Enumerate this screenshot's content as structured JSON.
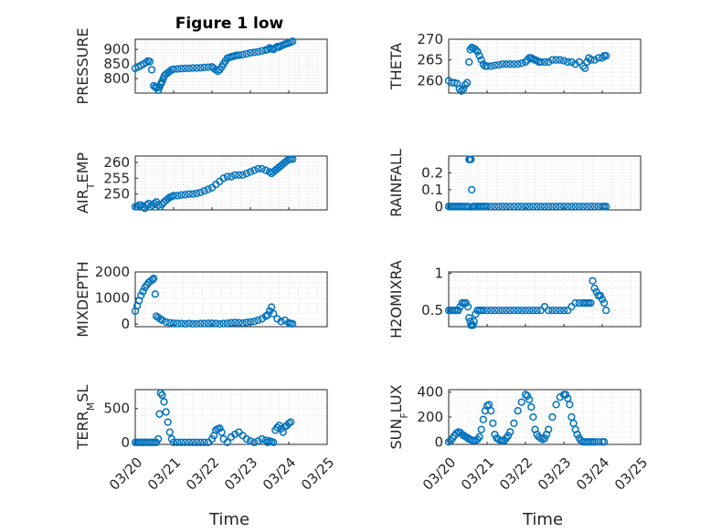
{
  "title": "Figure 1 low",
  "xlabel": "Time",
  "marker_color": "#0072BD",
  "x_ticks": [
    "03/20",
    "03/21",
    "03/22",
    "03/23",
    "03/24",
    "03/25"
  ],
  "chart_data": [
    {
      "type": "scatter",
      "ylabel": "PRESSURE",
      "ylim": [
        750,
        935
      ],
      "yticks": [
        800,
        850,
        900
      ],
      "xlim": [
        0,
        5
      ],
      "grid": "on",
      "x": [
        0.0,
        0.08,
        0.15,
        0.22,
        0.28,
        0.33,
        0.38,
        0.43,
        0.48,
        0.52,
        0.56,
        0.6,
        0.63,
        0.66,
        0.68,
        0.7,
        0.73,
        0.76,
        0.8,
        0.85,
        0.9,
        0.95,
        1.0,
        1.1,
        1.2,
        1.3,
        1.4,
        1.5,
        1.6,
        1.7,
        1.8,
        1.9,
        2.0,
        2.05,
        2.1,
        2.15,
        2.2,
        2.25,
        2.3,
        2.35,
        2.4,
        2.45,
        2.5,
        2.55,
        2.6,
        2.65,
        2.7,
        2.8,
        2.9,
        3.0,
        3.1,
        3.2,
        3.3,
        3.4,
        3.45,
        3.5,
        3.55,
        3.6,
        3.65,
        3.7,
        3.75,
        3.8,
        3.85,
        3.9,
        3.95,
        4.0,
        4.05,
        4.1
      ],
      "y": [
        835,
        840,
        845,
        850,
        855,
        860,
        858,
        830,
        775,
        770,
        768,
        760,
        770,
        780,
        785,
        790,
        800,
        810,
        815,
        820,
        825,
        830,
        832,
        833,
        834,
        835,
        835,
        836,
        836,
        837,
        838,
        839,
        840,
        835,
        830,
        825,
        830,
        840,
        850,
        860,
        870,
        872,
        875,
        876,
        878,
        880,
        880,
        882,
        885,
        888,
        890,
        892,
        895,
        898,
        900,
        905,
        902,
        900,
        905,
        910,
        908,
        912,
        915,
        918,
        920,
        922,
        925,
        928
      ]
    },
    {
      "type": "scatter",
      "ylabel": "THETA",
      "ylim": [
        257,
        270
      ],
      "yticks": [
        260,
        265,
        270
      ],
      "xlim": [
        0,
        5
      ],
      "grid": "on",
      "x": [
        0.0,
        0.08,
        0.15,
        0.22,
        0.28,
        0.33,
        0.38,
        0.43,
        0.48,
        0.53,
        0.56,
        0.6,
        0.65,
        0.7,
        0.75,
        0.8,
        0.85,
        0.9,
        0.95,
        1.0,
        1.1,
        1.2,
        1.3,
        1.4,
        1.5,
        1.6,
        1.7,
        1.8,
        1.9,
        2.0,
        2.05,
        2.1,
        2.15,
        2.2,
        2.25,
        2.3,
        2.35,
        2.4,
        2.5,
        2.6,
        2.7,
        2.8,
        2.9,
        3.0,
        3.1,
        3.2,
        3.3,
        3.4,
        3.5,
        3.55,
        3.6,
        3.65,
        3.7,
        3.8,
        3.9,
        4.0,
        4.05,
        4.1
      ],
      "y": [
        260,
        259.5,
        259.5,
        259.3,
        258,
        257.5,
        258,
        259,
        259.5,
        264.5,
        267.5,
        268,
        267.8,
        267.5,
        267,
        266,
        265,
        264,
        263.5,
        263.5,
        263.5,
        263.7,
        263.8,
        264,
        264,
        264,
        264,
        264,
        264.2,
        264.5,
        265,
        265.5,
        265.5,
        265.2,
        265,
        264.8,
        264.5,
        264.5,
        264.5,
        264.5,
        265,
        265,
        265,
        264.8,
        264.5,
        264.5,
        264,
        264.5,
        263.5,
        263,
        264.5,
        265.5,
        265,
        265,
        265.5,
        265.5,
        266,
        266
      ]
    },
    {
      "type": "scatter",
      "ylabel": "AIR_TEMP",
      "ylim": [
        245,
        262
      ],
      "yticks": [
        250,
        255,
        260
      ],
      "xlim": [
        0,
        5
      ],
      "grid": "on",
      "x": [
        0.0,
        0.05,
        0.1,
        0.15,
        0.2,
        0.25,
        0.3,
        0.35,
        0.4,
        0.45,
        0.5,
        0.55,
        0.6,
        0.65,
        0.7,
        0.75,
        0.8,
        0.85,
        0.9,
        0.95,
        1.0,
        1.1,
        1.2,
        1.3,
        1.4,
        1.5,
        1.6,
        1.7,
        1.8,
        1.9,
        2.0,
        2.1,
        2.2,
        2.3,
        2.4,
        2.5,
        2.6,
        2.7,
        2.8,
        2.9,
        3.0,
        3.1,
        3.2,
        3.3,
        3.4,
        3.5,
        3.55,
        3.6,
        3.65,
        3.7,
        3.75,
        3.8,
        3.85,
        3.9,
        3.95,
        4.0,
        4.05,
        4.1
      ],
      "y": [
        246,
        246,
        246.5,
        246.5,
        246,
        245.5,
        246.5,
        247,
        246,
        246.5,
        247,
        247.5,
        246.5,
        246,
        246.8,
        247.5,
        248,
        248.5,
        249,
        249.2,
        249.5,
        249.5,
        249.7,
        249.8,
        250,
        250,
        250.2,
        250.5,
        251,
        251.5,
        252,
        253,
        254,
        255,
        255.5,
        255.5,
        256,
        256,
        256,
        256.5,
        257,
        257.5,
        258,
        258,
        257.5,
        257,
        256.5,
        257,
        257.5,
        258,
        258.5,
        259,
        259.5,
        260,
        260.5,
        261,
        261,
        261
      ]
    },
    {
      "type": "scatter",
      "ylabel": "RAINFALL",
      "ylim": [
        -0.02,
        0.3
      ],
      "yticks": [
        0,
        0.1,
        0.2
      ],
      "xlim": [
        0,
        5
      ],
      "grid": "on",
      "x": [
        0.0,
        0.05,
        0.1,
        0.15,
        0.2,
        0.25,
        0.3,
        0.35,
        0.4,
        0.45,
        0.5,
        0.53,
        0.56,
        0.58,
        0.6,
        0.63,
        0.66,
        0.7,
        0.75,
        0.8,
        0.85,
        0.9,
        0.95,
        1.0,
        1.1,
        1.2,
        1.3,
        1.4,
        1.5,
        1.6,
        1.7,
        1.8,
        1.9,
        2.0,
        2.1,
        2.2,
        2.3,
        2.4,
        2.5,
        2.6,
        2.7,
        2.8,
        2.9,
        3.0,
        3.1,
        3.2,
        3.3,
        3.4,
        3.5,
        3.6,
        3.7,
        3.8,
        3.9,
        4.0,
        4.05,
        4.1
      ],
      "y": [
        0,
        0,
        0,
        0,
        0,
        0,
        0,
        0,
        0,
        0,
        0,
        0.28,
        0.28,
        0.28,
        0.1,
        0,
        0,
        0,
        0,
        0,
        0,
        0,
        0,
        0,
        0,
        0,
        0,
        0,
        0,
        0,
        0,
        0,
        0,
        0,
        0,
        0,
        0,
        0,
        0,
        0,
        0,
        0,
        0,
        0,
        0,
        0,
        0,
        0,
        0,
        0,
        0,
        0,
        0,
        0,
        0,
        0
      ]
    },
    {
      "type": "scatter",
      "ylabel": "MIXDEPTH",
      "ylim": [
        -100,
        2000
      ],
      "yticks": [
        0,
        1000,
        2000
      ],
      "xlim": [
        0,
        5
      ],
      "grid": "on",
      "x": [
        0.0,
        0.05,
        0.1,
        0.15,
        0.2,
        0.25,
        0.3,
        0.35,
        0.4,
        0.45,
        0.48,
        0.52,
        0.55,
        0.6,
        0.65,
        0.7,
        0.8,
        0.9,
        1.0,
        1.1,
        1.2,
        1.3,
        1.4,
        1.5,
        1.6,
        1.7,
        1.8,
        1.9,
        2.0,
        2.1,
        2.2,
        2.3,
        2.4,
        2.5,
        2.6,
        2.7,
        2.8,
        2.9,
        3.0,
        3.1,
        3.2,
        3.3,
        3.4,
        3.45,
        3.5,
        3.55,
        3.6,
        3.7,
        3.8,
        3.9,
        4.0,
        4.05,
        4.1
      ],
      "y": [
        500,
        700,
        900,
        1100,
        1250,
        1400,
        1500,
        1600,
        1650,
        1700,
        1750,
        1150,
        300,
        250,
        200,
        150,
        80,
        50,
        30,
        20,
        20,
        10,
        20,
        10,
        10,
        20,
        20,
        30,
        30,
        20,
        10,
        20,
        30,
        50,
        60,
        50,
        40,
        60,
        80,
        100,
        150,
        200,
        300,
        350,
        500,
        650,
        400,
        200,
        100,
        150,
        50,
        20,
        10
      ]
    },
    {
      "type": "scatter",
      "ylabel": "H2OMIXRA",
      "ylim": [
        0.28,
        1.02
      ],
      "yticks": [
        0.5,
        1
      ],
      "xlim": [
        0,
        5
      ],
      "grid": "on",
      "x": [
        0.0,
        0.05,
        0.1,
        0.15,
        0.2,
        0.25,
        0.3,
        0.35,
        0.4,
        0.45,
        0.5,
        0.53,
        0.56,
        0.58,
        0.6,
        0.63,
        0.66,
        0.7,
        0.75,
        0.8,
        0.85,
        0.9,
        1.0,
        1.1,
        1.2,
        1.3,
        1.4,
        1.5,
        1.6,
        1.7,
        1.8,
        1.9,
        2.0,
        2.1,
        2.2,
        2.3,
        2.4,
        2.5,
        2.6,
        2.7,
        2.8,
        2.9,
        3.0,
        3.1,
        3.2,
        3.3,
        3.4,
        3.5,
        3.55,
        3.6,
        3.65,
        3.7,
        3.75,
        3.8,
        3.85,
        3.9,
        3.95,
        4.0,
        4.05,
        4.1
      ],
      "y": [
        0.5,
        0.5,
        0.5,
        0.5,
        0.5,
        0.5,
        0.55,
        0.6,
        0.6,
        0.6,
        0.55,
        0.4,
        0.35,
        0.3,
        0.3,
        0.3,
        0.35,
        0.45,
        0.5,
        0.5,
        0.5,
        0.5,
        0.5,
        0.5,
        0.5,
        0.5,
        0.5,
        0.5,
        0.5,
        0.5,
        0.5,
        0.5,
        0.5,
        0.5,
        0.5,
        0.5,
        0.5,
        0.55,
        0.5,
        0.5,
        0.5,
        0.5,
        0.5,
        0.5,
        0.55,
        0.6,
        0.6,
        0.6,
        0.6,
        0.6,
        0.6,
        0.6,
        0.9,
        0.8,
        0.75,
        0.7,
        0.7,
        0.65,
        0.6,
        0.5
      ]
    },
    {
      "type": "scatter",
      "ylabel": "TERR_MSL",
      "ylim": [
        -30,
        780
      ],
      "yticks": [
        0,
        500
      ],
      "xlim": [
        0,
        5
      ],
      "grid": "on",
      "x": [
        0.0,
        0.05,
        0.1,
        0.15,
        0.2,
        0.25,
        0.3,
        0.35,
        0.4,
        0.45,
        0.5,
        0.55,
        0.6,
        0.63,
        0.66,
        0.7,
        0.75,
        0.8,
        0.85,
        0.9,
        0.95,
        1.0,
        1.1,
        1.2,
        1.3,
        1.4,
        1.5,
        1.6,
        1.7,
        1.8,
        1.9,
        2.0,
        2.05,
        2.1,
        2.15,
        2.2,
        2.25,
        2.3,
        2.4,
        2.5,
        2.6,
        2.7,
        2.8,
        2.9,
        3.0,
        3.1,
        3.2,
        3.3,
        3.4,
        3.45,
        3.5,
        3.55,
        3.6,
        3.65,
        3.7,
        3.75,
        3.8,
        3.85,
        3.9,
        3.95,
        4.0,
        4.05
      ],
      "y": [
        0,
        0,
        0,
        0,
        0,
        0,
        0,
        0,
        0,
        0,
        0,
        0,
        50,
        420,
        730,
        700,
        600,
        450,
        300,
        150,
        50,
        0,
        0,
        0,
        0,
        0,
        0,
        0,
        0,
        0,
        0,
        50,
        100,
        180,
        200,
        210,
        150,
        50,
        0,
        80,
        120,
        150,
        100,
        50,
        20,
        0,
        20,
        50,
        30,
        0,
        20,
        10,
        0,
        180,
        220,
        250,
        200,
        150,
        230,
        250,
        280,
        300
      ]
    },
    {
      "type": "scatter",
      "ylabel": "SUN_FLUX",
      "ylim": [
        -20,
        420
      ],
      "yticks": [
        0,
        200,
        400
      ],
      "xlim": [
        0,
        5
      ],
      "grid": "on",
      "x": [
        0.0,
        0.05,
        0.1,
        0.15,
        0.2,
        0.25,
        0.3,
        0.35,
        0.4,
        0.45,
        0.5,
        0.55,
        0.6,
        0.65,
        0.7,
        0.75,
        0.8,
        0.85,
        0.9,
        0.95,
        1.0,
        1.05,
        1.1,
        1.15,
        1.2,
        1.25,
        1.3,
        1.35,
        1.4,
        1.45,
        1.5,
        1.55,
        1.6,
        1.7,
        1.8,
        1.9,
        2.0,
        2.05,
        2.1,
        2.15,
        2.2,
        2.25,
        2.3,
        2.35,
        2.4,
        2.45,
        2.5,
        2.55,
        2.6,
        2.7,
        2.8,
        2.9,
        3.0,
        3.05,
        3.1,
        3.15,
        3.2,
        3.25,
        3.3,
        3.35,
        3.4,
        3.45,
        3.5,
        3.55,
        3.6,
        3.65,
        3.7,
        3.75,
        3.8,
        3.9,
        4.0,
        4.05
      ],
      "y": [
        0,
        10,
        30,
        50,
        70,
        80,
        75,
        60,
        50,
        40,
        30,
        20,
        15,
        10,
        10,
        20,
        40,
        100,
        180,
        250,
        290,
        300,
        250,
        150,
        60,
        30,
        20,
        10,
        10,
        10,
        30,
        50,
        80,
        150,
        250,
        320,
        380,
        370,
        340,
        280,
        200,
        100,
        60,
        40,
        30,
        20,
        30,
        60,
        100,
        200,
        300,
        360,
        380,
        380,
        350,
        300,
        200,
        150,
        100,
        60,
        30,
        10,
        0,
        0,
        0,
        0,
        0,
        0,
        0,
        0,
        0,
        0
      ]
    }
  ]
}
